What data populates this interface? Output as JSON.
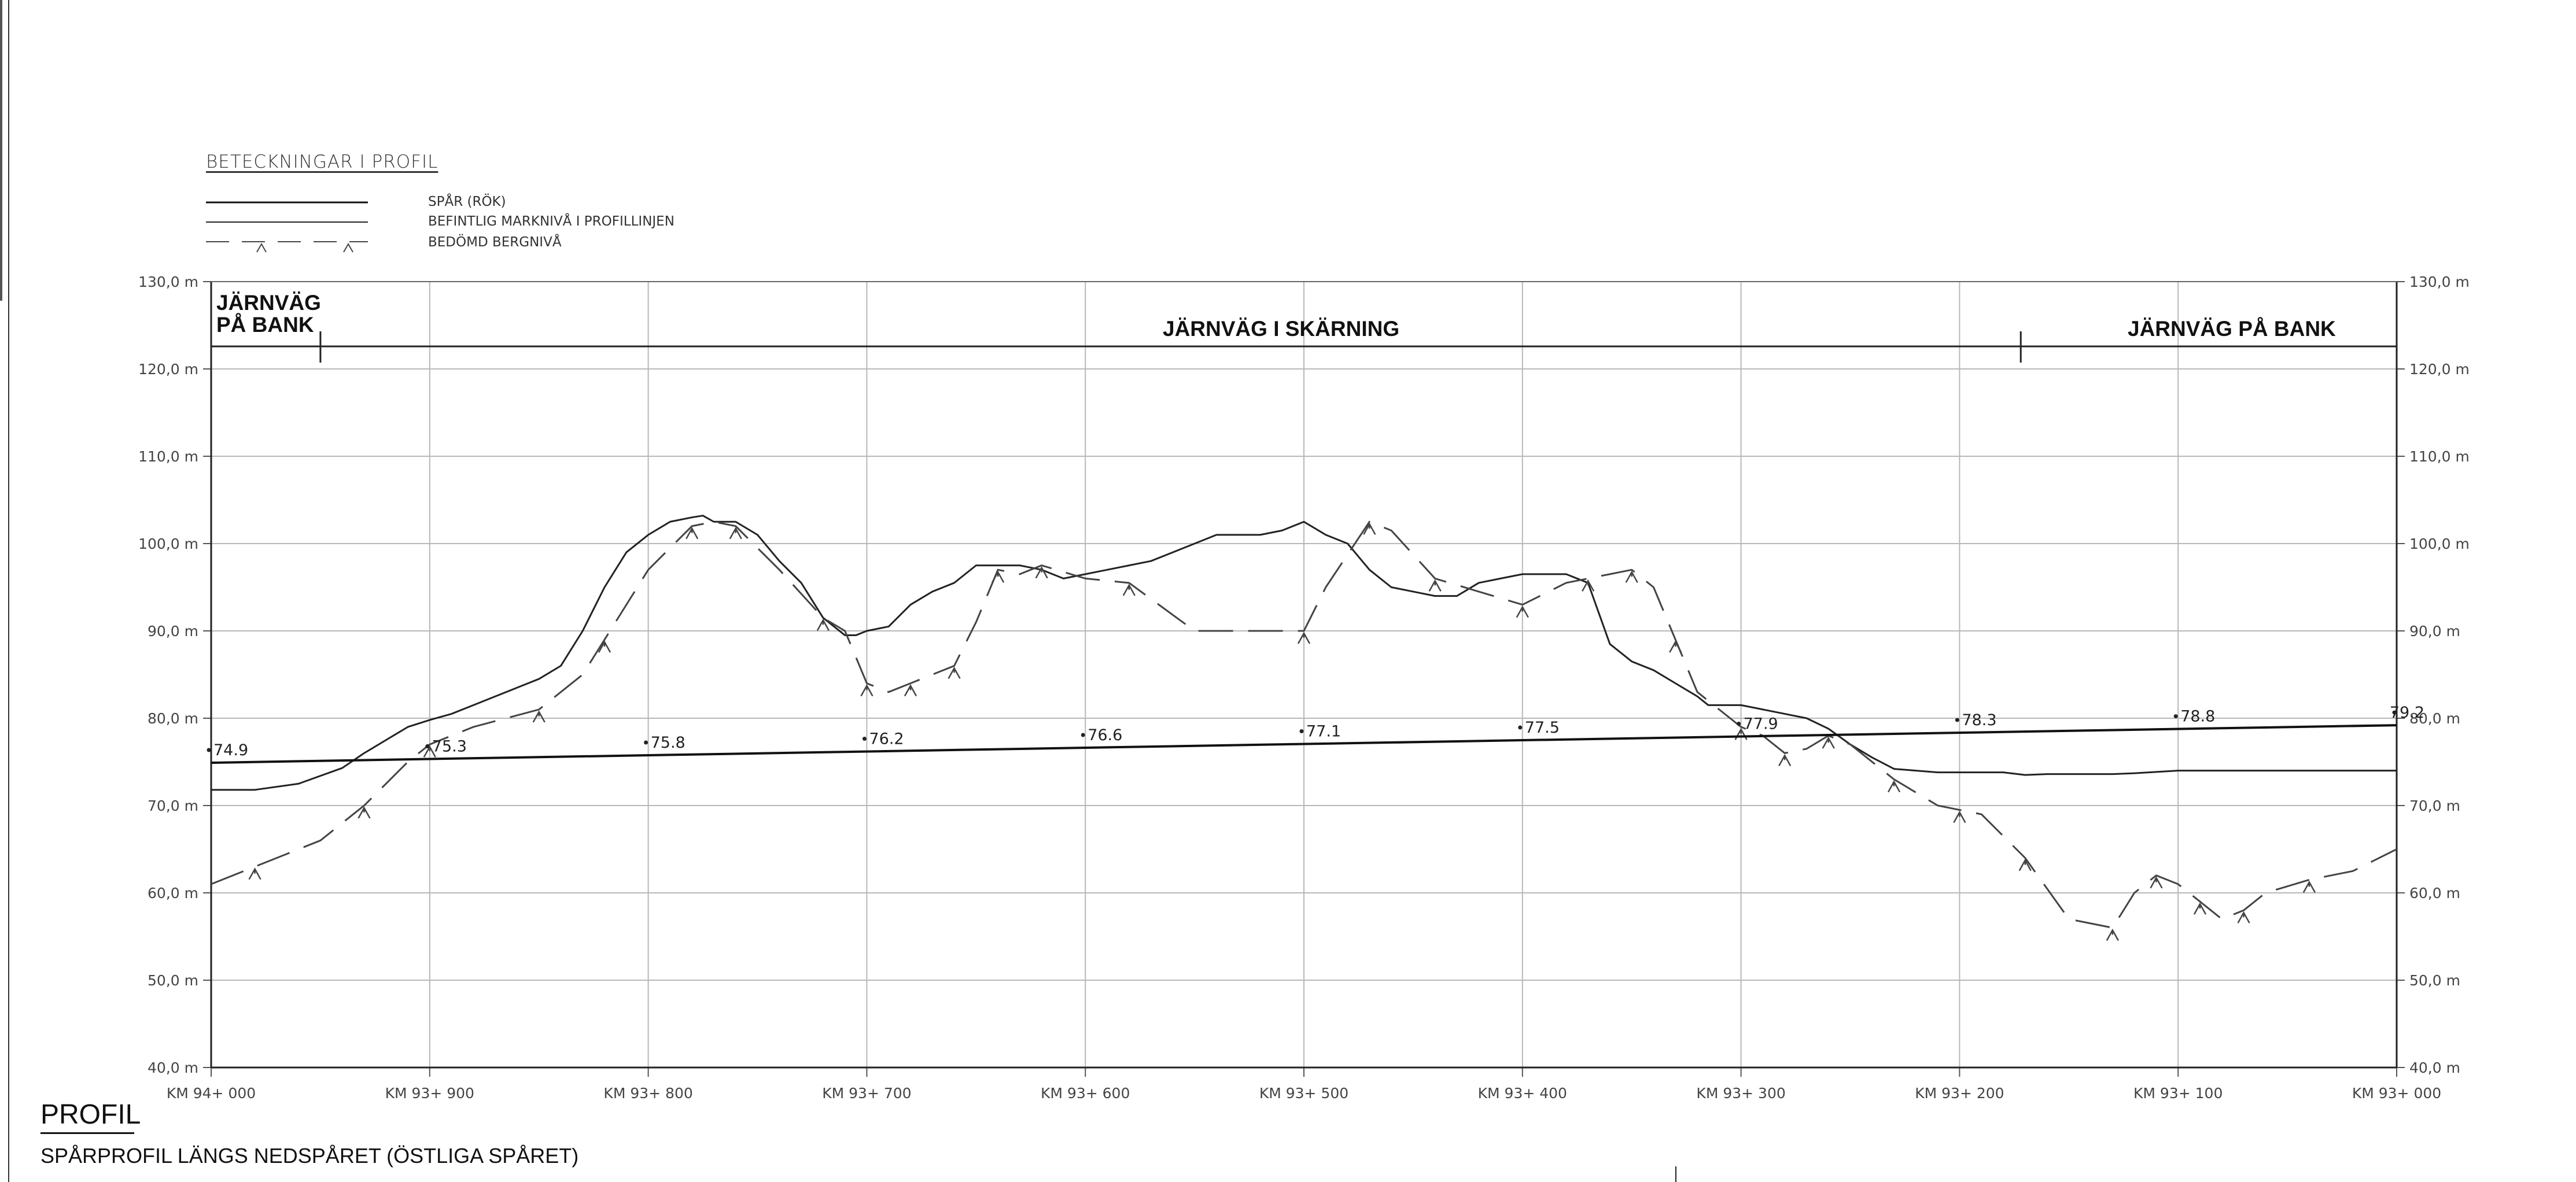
{
  "legend": {
    "title": "BETECKNINGAR I PROFIL",
    "items": [
      {
        "label": "SPÅR (RÖK)",
        "style": "solid-thick"
      },
      {
        "label": "BEFINTLIG MARKNIVÅ I PROFILLINJEN",
        "style": "solid-thin"
      },
      {
        "label": "BEDÖMD BERGNIVÅ",
        "style": "dashed-hatch"
      }
    ]
  },
  "zones": {
    "left": [
      "JÄRNVÄG",
      "PÅ BANK"
    ],
    "middle": "JÄRNVÄG I SKÄRNING",
    "right": "JÄRNVÄG PÅ BANK"
  },
  "profile": {
    "title": "PROFIL",
    "subtitle": "SPÅRPROFIL LÄNGS NEDSPÅRET (ÖSTLIGA SPÅRET)"
  },
  "chart_data": {
    "type": "line",
    "x_unit": "m",
    "xlim": [
      0,
      1000
    ],
    "ylim": [
      40,
      130
    ],
    "y_ticks": [
      40,
      50,
      60,
      70,
      80,
      90,
      100,
      110,
      120,
      130
    ],
    "y_tick_labels": [
      "40,0 m",
      "50,0 m",
      "60,0 m",
      "70,0 m",
      "80,0 m",
      "90,0 m",
      "100,0 m",
      "110,0 m",
      "120,0 m",
      "130,0 m"
    ],
    "x_ticks": [
      0,
      100,
      200,
      300,
      400,
      500,
      600,
      700,
      800,
      900,
      1000
    ],
    "x_tick_labels": [
      "KM 94+ 000",
      "KM 93+ 900",
      "KM 93+ 800",
      "KM 93+ 700",
      "KM 93+ 600",
      "KM 93+ 500",
      "KM 93+ 400",
      "KM 93+ 300",
      "KM 93+ 200",
      "KM 93+ 100",
      "KM 93+ 000"
    ],
    "grid": true,
    "zone_boundaries": [
      50,
      828
    ],
    "series": [
      {
        "name": "SPÅR (RÖK)",
        "style": "solid-thick",
        "color": "#111111",
        "x": [
          0,
          1000
        ],
        "y": [
          74.9,
          79.2
        ]
      },
      {
        "name": "BEFINTLIG MARKNIVÅ I PROFILLINJEN",
        "style": "solid-thin",
        "color": "#222222",
        "x": [
          0,
          20,
          40,
          60,
          70,
          80,
          90,
          100,
          110,
          120,
          130,
          140,
          150,
          160,
          170,
          180,
          190,
          200,
          210,
          220,
          225,
          230,
          240,
          250,
          255,
          260,
          270,
          280,
          290,
          295,
          300,
          310,
          320,
          330,
          340,
          350,
          360,
          370,
          380,
          385,
          390,
          400,
          410,
          420,
          430,
          440,
          450,
          460,
          470,
          480,
          490,
          500,
          510,
          520,
          525,
          530,
          540,
          550,
          560,
          570,
          580,
          590,
          600,
          610,
          620,
          630,
          640,
          650,
          660,
          670,
          680,
          685,
          690,
          695,
          700,
          710,
          720,
          730,
          740,
          750,
          760,
          770,
          780,
          790,
          800,
          810,
          820,
          830,
          840,
          850,
          860,
          870,
          880,
          900,
          920,
          940,
          960,
          980,
          1000
        ],
        "y": [
          71.8,
          71.8,
          72.5,
          74.3,
          76.0,
          77.5,
          79.0,
          79.8,
          80.5,
          81.5,
          82.5,
          83.5,
          84.5,
          86.0,
          90.0,
          95.0,
          99.0,
          101.0,
          102.5,
          103.0,
          103.2,
          102.5,
          102.5,
          101.0,
          99.5,
          98.0,
          95.5,
          91.5,
          89.5,
          89.5,
          90.0,
          90.5,
          93.0,
          94.5,
          95.5,
          97.5,
          97.5,
          97.5,
          97.0,
          96.5,
          96.0,
          96.5,
          97.0,
          97.5,
          98.0,
          99.0,
          100.0,
          101.0,
          101.0,
          101.0,
          101.5,
          102.5,
          101.0,
          100.0,
          98.5,
          97.0,
          95.0,
          94.5,
          94.0,
          94.0,
          95.5,
          96.0,
          96.5,
          96.5,
          96.5,
          95.5,
          88.5,
          86.5,
          85.5,
          84.0,
          82.5,
          81.5,
          81.5,
          81.5,
          81.5,
          81.0,
          80.5,
          80.0,
          78.8,
          77.0,
          75.5,
          74.2,
          74.0,
          73.8,
          73.8,
          73.8,
          73.8,
          73.5,
          73.6,
          73.6,
          73.6,
          73.6,
          73.7,
          74.0,
          74.0,
          74.0,
          74.0,
          74.0,
          74.0
        ],
        "x_trim_note": ""
      },
      {
        "name": "BEDÖMD BERGNIVÅ",
        "style": "dashed-hatch",
        "color": "#444444",
        "x": [
          0,
          20,
          50,
          70,
          90,
          100,
          120,
          150,
          170,
          180,
          200,
          220,
          230,
          240,
          260,
          280,
          290,
          300,
          310,
          320,
          330,
          340,
          350,
          360,
          370,
          380,
          400,
          420,
          450,
          500,
          510,
          530,
          540,
          560,
          580,
          600,
          620,
          630,
          640,
          650,
          660,
          670,
          680,
          700,
          710,
          720,
          730,
          740,
          750,
          770,
          790,
          800,
          810,
          830,
          850,
          870,
          880,
          890,
          900,
          910,
          920,
          930,
          940,
          960,
          980,
          1000
        ],
        "y": [
          61.0,
          63.0,
          66.0,
          70.0,
          75.0,
          77.0,
          79.0,
          81.0,
          85.0,
          89.0,
          97.0,
          102.0,
          102.5,
          102.0,
          97.0,
          91.5,
          90.0,
          84.0,
          83.0,
          84.0,
          85.0,
          86.0,
          91.0,
          97.0,
          96.5,
          97.5,
          96.0,
          95.5,
          90.0,
          90.0,
          95.0,
          102.5,
          101.5,
          96.0,
          94.5,
          93.0,
          95.5,
          96.0,
          96.5,
          97.0,
          95.0,
          89.0,
          83.0,
          79.0,
          78.0,
          76.0,
          76.5,
          78.0,
          77.0,
          73.0,
          70.0,
          69.5,
          69.0,
          64.0,
          57.0,
          56.0,
          60.0,
          62.0,
          61.0,
          59.0,
          57.0,
          58.0,
          60.0,
          61.5,
          62.5,
          65.0
        ]
      }
    ],
    "track_labels": [
      {
        "x": 0,
        "text": "74.9"
      },
      {
        "x": 100,
        "text": "75.3"
      },
      {
        "x": 200,
        "text": "75.8"
      },
      {
        "x": 300,
        "text": "76.2"
      },
      {
        "x": 400,
        "text": "76.6"
      },
      {
        "x": 500,
        "text": "77.1"
      },
      {
        "x": 600,
        "text": "77.5"
      },
      {
        "x": 700,
        "text": "77.9"
      },
      {
        "x": 800,
        "text": "78.3"
      },
      {
        "x": 900,
        "text": "78.8"
      },
      {
        "x": 1000,
        "text": "79.2"
      }
    ]
  }
}
